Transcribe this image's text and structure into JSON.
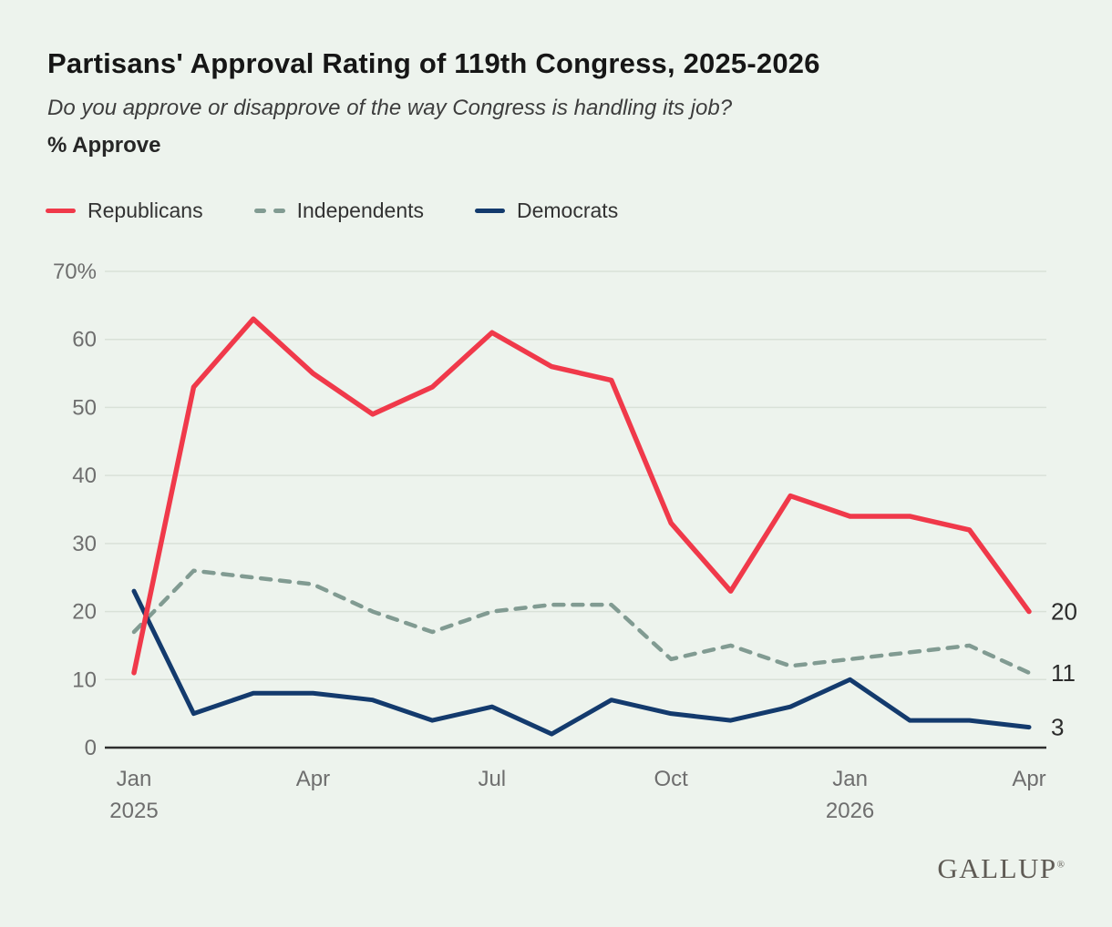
{
  "page": {
    "title": "Partisans' Approval Rating of 119th Congress, 2025-2026",
    "subtitle": "Do you approve or disapprove of the way Congress is handling its job?",
    "measure_label": "% Approve",
    "brand": "GALLUP",
    "brand_mark": "®",
    "background_color": "#edf3ed"
  },
  "legend": {
    "items": [
      {
        "label": "Republicans",
        "color": "#f0394a",
        "style": "solid"
      },
      {
        "label": "Independents",
        "color": "#819b92",
        "style": "dashed"
      },
      {
        "label": "Democrats",
        "color": "#133a6d",
        "style": "solid"
      }
    ]
  },
  "chart_data": {
    "type": "line",
    "title": "Partisans' Approval Rating of 119th Congress, 2025-2026",
    "subtitle": "Do you approve or disapprove of the way Congress is handling its job?",
    "ylabel": "% Approve",
    "ylim": [
      0,
      70
    ],
    "grid": "horizontal",
    "legend_position": "top-left",
    "x_categories": [
      "Jan 2025",
      "Feb 2025",
      "Mar 2025",
      "Apr 2025",
      "May 2025",
      "Jun 2025",
      "Jul 2025",
      "Aug 2025",
      "Sep 2025",
      "Oct 2025",
      "Nov 2025",
      "Dec 2025",
      "Jan 2026",
      "Feb 2026",
      "Mar 2026",
      "Apr 2026"
    ],
    "x_tick_labels": [
      {
        "index": 0,
        "label": "Jan",
        "sub": "2025"
      },
      {
        "index": 3,
        "label": "Apr",
        "sub": ""
      },
      {
        "index": 6,
        "label": "Jul",
        "sub": ""
      },
      {
        "index": 9,
        "label": "Oct",
        "sub": ""
      },
      {
        "index": 12,
        "label": "Jan",
        "sub": "2026"
      },
      {
        "index": 15,
        "label": "Apr",
        "sub": ""
      }
    ],
    "y_ticks": [
      {
        "value": 70,
        "label": "70%"
      },
      {
        "value": 60,
        "label": "60"
      },
      {
        "value": 50,
        "label": "50"
      },
      {
        "value": 40,
        "label": "40"
      },
      {
        "value": 30,
        "label": "30"
      },
      {
        "value": 20,
        "label": "20"
      },
      {
        "value": 10,
        "label": "10"
      },
      {
        "value": 0,
        "label": "0"
      }
    ],
    "series": [
      {
        "name": "Independents",
        "color": "#819b92",
        "dash": true,
        "width": 4.5,
        "values": [
          17,
          26,
          25,
          24,
          20,
          17,
          20,
          21,
          21,
          13,
          15,
          12,
          13,
          14,
          15,
          11
        ],
        "end_label": "11"
      },
      {
        "name": "Democrats",
        "color": "#133a6d",
        "dash": false,
        "width": 5,
        "values": [
          23,
          5,
          8,
          8,
          7,
          4,
          6,
          2,
          7,
          5,
          4,
          6,
          10,
          4,
          4,
          3
        ],
        "end_label": "3"
      },
      {
        "name": "Republicans",
        "color": "#f0394a",
        "dash": false,
        "width": 5.5,
        "values": [
          11,
          53,
          63,
          55,
          49,
          53,
          61,
          56,
          54,
          33,
          23,
          37,
          34,
          34,
          32,
          20
        ],
        "end_label": "20"
      }
    ],
    "colors": {
      "gridline": "#d9e1d8",
      "axis": "#2e2e2e",
      "tick_text": "#6e6e6e",
      "end_label_text": "#2b2b2b"
    }
  }
}
